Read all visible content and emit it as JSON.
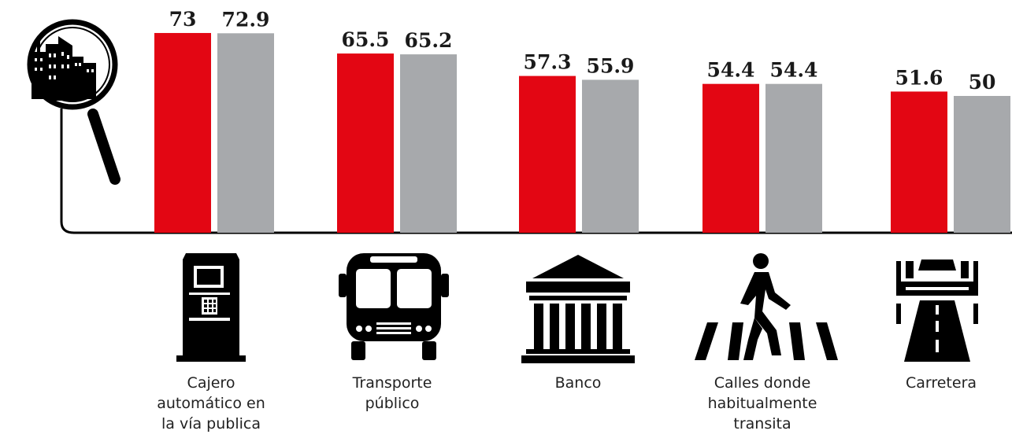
{
  "chart_data": {
    "type": "bar",
    "categories": [
      "Cajero\nautomático en\nla vía publica",
      "Transporte\npúblico",
      "Banco",
      "Calles donde\nhabitualmente\ntransita",
      "Carretera"
    ],
    "series": [
      {
        "color": "#e30613",
        "values": [
          73,
          65.5,
          57.3,
          54.4,
          51.6
        ],
        "labels": [
          "73",
          "65.5",
          "57.3",
          "54.4",
          "51.6"
        ]
      },
      {
        "color": "#a7a9ac",
        "values": [
          72.9,
          65.2,
          55.9,
          54.4,
          50
        ],
        "labels": [
          "72.9",
          "65.2",
          "55.9",
          "54.4",
          "50"
        ]
      }
    ],
    "icons": [
      "magnifier-city-icon",
      "atm-icon",
      "bus-icon",
      "bank-icon",
      "pedestrian-crossing-icon",
      "highway-icon"
    ],
    "grid": false,
    "legend": "none"
  }
}
